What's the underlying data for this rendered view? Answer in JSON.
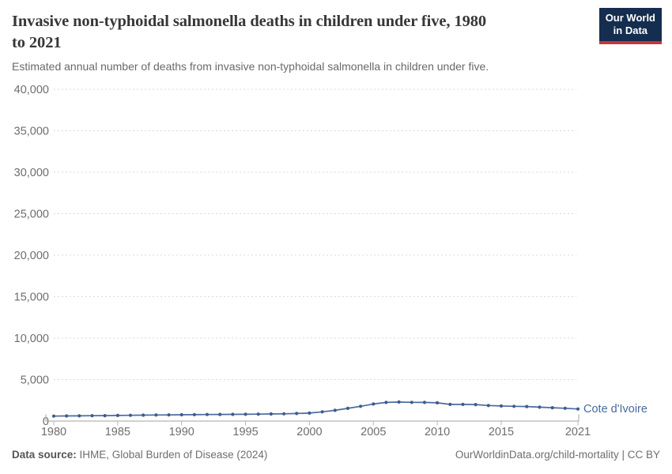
{
  "header": {
    "title_line1": "Invasive non-typhoidal salmonella deaths in children under five, 1980",
    "title_line2": "to 2021",
    "subtitle": "Estimated annual number of deaths from invasive non-typhoidal salmonella in children under five.",
    "logo": {
      "line1": "Our World",
      "line2": "in Data"
    }
  },
  "chart_data": {
    "type": "line",
    "title": "Invasive non-typhoidal salmonella deaths in children under five, 1980 to 2021",
    "xlabel": "",
    "ylabel": "",
    "xlim": [
      1980,
      2021
    ],
    "ylim": [
      0,
      40000
    ],
    "grid": "horizontal-dashed",
    "legend_position": "end-of-line-label",
    "xticks": [
      1980,
      1985,
      1990,
      1995,
      2000,
      2005,
      2010,
      2015,
      2021
    ],
    "yticks": [
      0,
      5000,
      10000,
      15000,
      20000,
      25000,
      30000,
      35000,
      40000
    ],
    "x": [
      1980,
      1981,
      1982,
      1983,
      1984,
      1985,
      1986,
      1987,
      1988,
      1989,
      1990,
      1991,
      1992,
      1993,
      1994,
      1995,
      1996,
      1997,
      1998,
      1999,
      2000,
      2001,
      2002,
      2003,
      2004,
      2005,
      2006,
      2007,
      2008,
      2009,
      2010,
      2011,
      2012,
      2013,
      2014,
      2015,
      2016,
      2017,
      2018,
      2019,
      2020,
      2021
    ],
    "series": [
      {
        "name": "Cote d'Ivoire",
        "values": [
          600,
          615,
          630,
          645,
          660,
          675,
          695,
          715,
          730,
          745,
          760,
          775,
          790,
          800,
          810,
          820,
          835,
          855,
          875,
          915,
          960,
          1110,
          1300,
          1530,
          1780,
          2060,
          2250,
          2300,
          2260,
          2250,
          2200,
          2010,
          2010,
          1990,
          1880,
          1820,
          1780,
          1750,
          1680,
          1610,
          1540,
          1460
        ]
      }
    ],
    "entity_label": "Cote d'Ivoire"
  },
  "footer": {
    "source_label": "Data source:",
    "source_text": " IHME, Global Burden of Disease (2024)",
    "right_text": "OurWorldinData.org/child-mortality | CC BY"
  },
  "colors": {
    "line": "#4c6a9c",
    "dot": "#3d5c8f",
    "entity_label": "#4c6a9c",
    "grid": "#dadada",
    "axis": "#a3a3a3",
    "tick": "#b8b8b8",
    "tick_label": "#6e6e6e",
    "logo_bg": "#152d4e",
    "logo_red": "#c4363a"
  }
}
